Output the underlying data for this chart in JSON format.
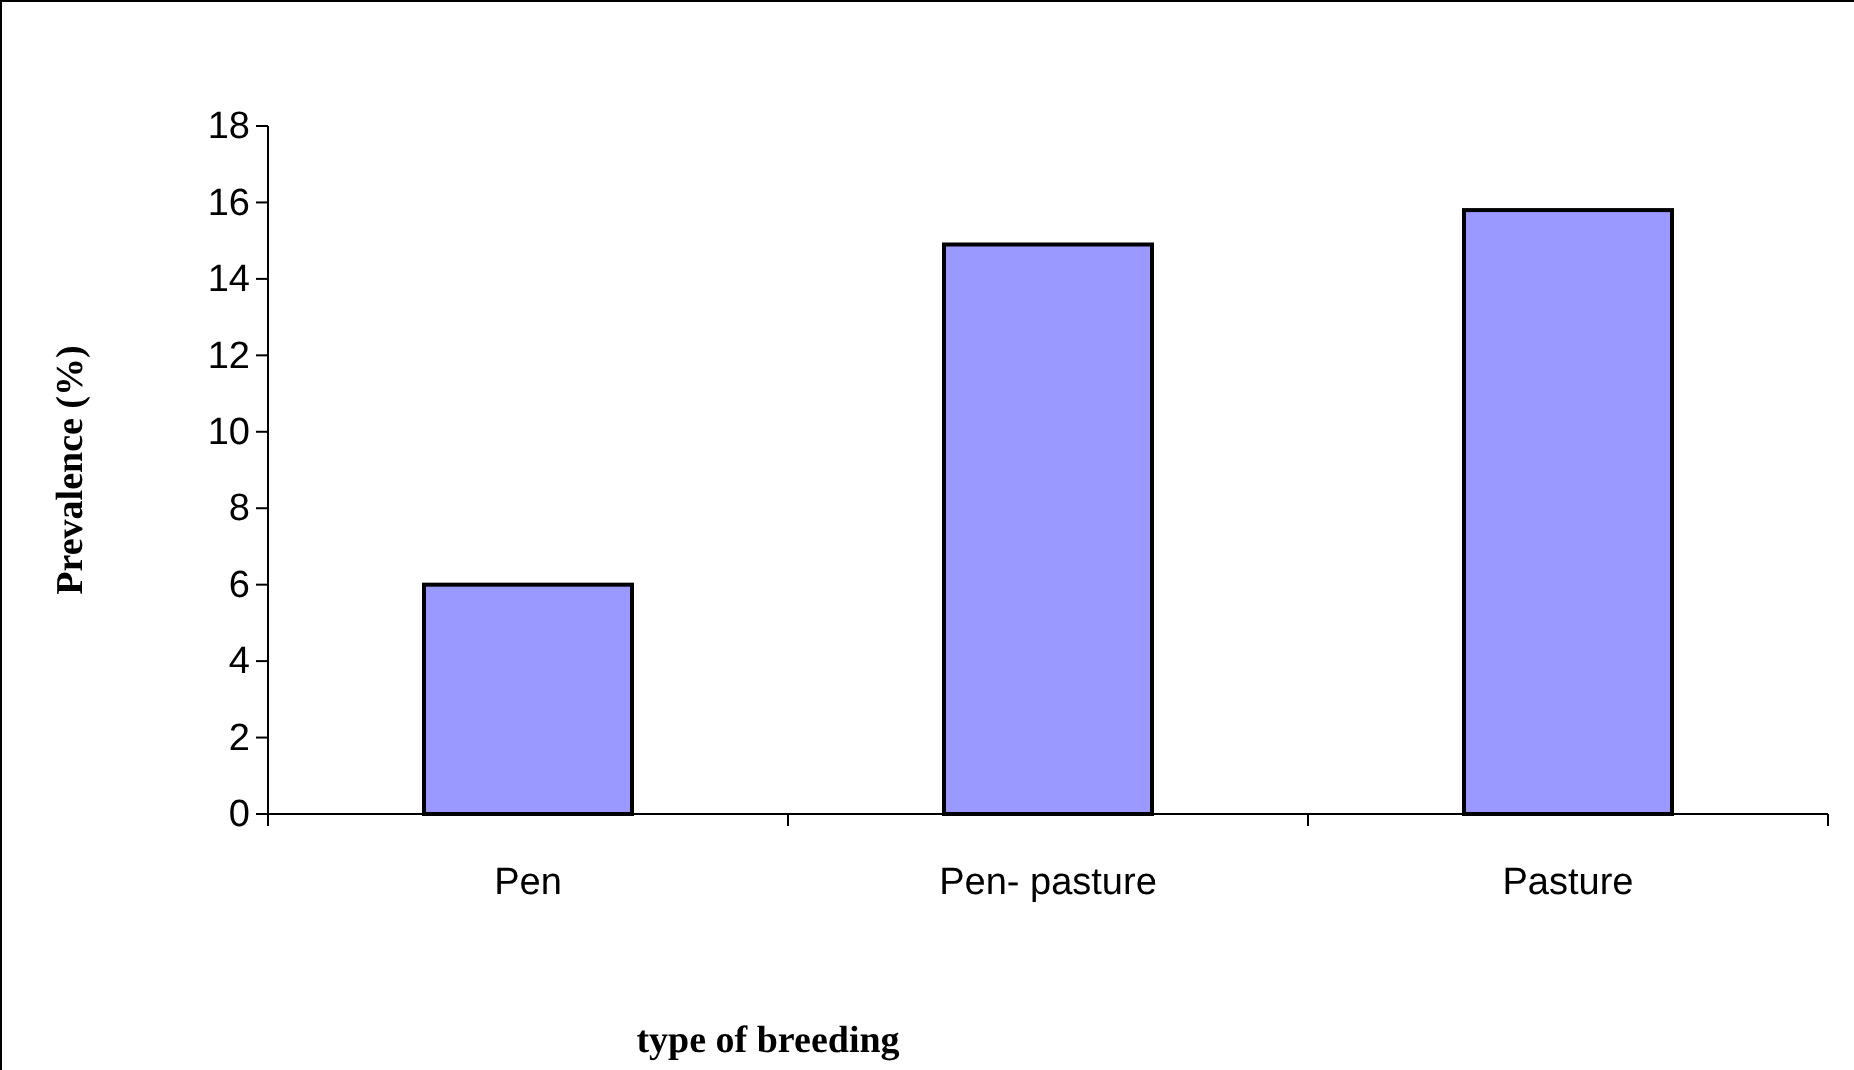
{
  "chart_data": {
    "type": "bar",
    "xlabel": "type of breeding",
    "ylabel": "Prevalence (%)",
    "categories": [
      "Pen",
      "Pen- pasture",
      "Pasture"
    ],
    "values": [
      6,
      14.9,
      15.8
    ],
    "color": "#9999ff",
    "ylim": [
      0,
      18
    ],
    "yticks": [
      0,
      2,
      4,
      6,
      8,
      10,
      12,
      14,
      16,
      18
    ],
    "grid": false
  }
}
